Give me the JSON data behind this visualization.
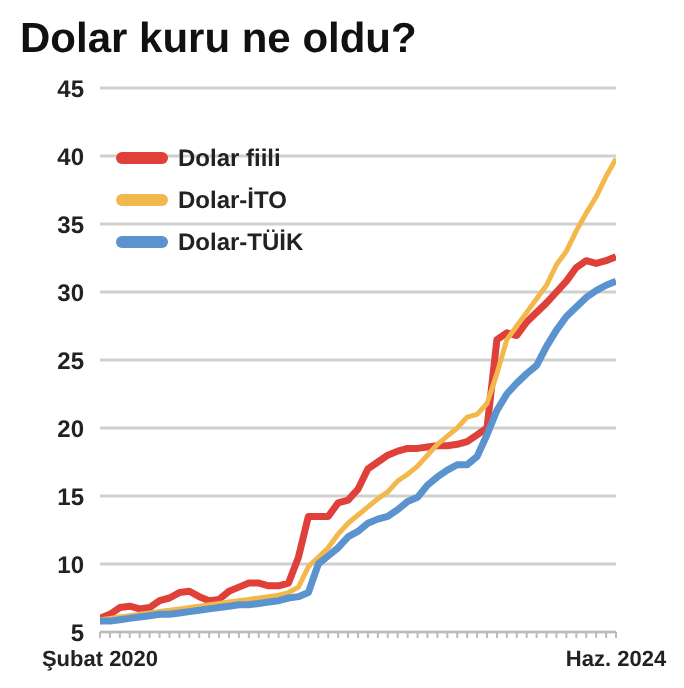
{
  "chart_data": {
    "type": "line",
    "title": "Dolar kuru ne oldu?",
    "categories": [
      "Şubat 2020",
      null,
      null,
      null,
      null,
      null,
      null,
      null,
      null,
      null,
      null,
      null,
      null,
      null,
      null,
      null,
      null,
      null,
      null,
      null,
      null,
      null,
      null,
      null,
      null,
      null,
      null,
      null,
      null,
      null,
      null,
      null,
      null,
      null,
      null,
      null,
      null,
      null,
      null,
      null,
      null,
      null,
      null,
      null,
      null,
      null,
      null,
      null,
      null,
      null,
      null,
      null,
      "Haz. 2024"
    ],
    "series": [
      {
        "name": "Dolar fiili",
        "color": "#e0403a",
        "values": [
          6.0,
          6.3,
          6.8,
          6.9,
          6.7,
          6.8,
          7.3,
          7.5,
          7.9,
          8.0,
          7.6,
          7.3,
          7.4,
          8.0,
          8.3,
          8.6,
          8.6,
          8.4,
          8.4,
          8.6,
          10.5,
          13.5,
          13.5,
          13.5,
          14.5,
          14.7,
          15.5,
          17.0,
          17.5,
          18.0,
          18.3,
          18.5,
          18.5,
          18.6,
          18.7,
          18.7,
          18.8,
          19.0,
          19.5,
          20.0,
          26.5,
          27.0,
          26.8,
          27.8,
          28.5,
          29.2,
          30.0,
          30.8,
          31.8,
          32.3,
          32.1,
          32.3,
          32.6
        ]
      },
      {
        "name": "Dolar-İTO",
        "color": "#f2b84b",
        "values": [
          5.9,
          6.0,
          6.1,
          6.2,
          6.3,
          6.4,
          6.5,
          6.6,
          6.7,
          6.8,
          6.9,
          7.0,
          7.1,
          7.2,
          7.3,
          7.4,
          7.5,
          7.6,
          7.7,
          7.9,
          8.3,
          9.8,
          10.5,
          11.2,
          12.2,
          13.0,
          13.6,
          14.2,
          14.8,
          15.3,
          16.1,
          16.6,
          17.2,
          18.0,
          18.8,
          19.4,
          20.0,
          20.8,
          21.0,
          21.8,
          24.0,
          26.5,
          27.5,
          28.5,
          29.5,
          30.5,
          32.0,
          33.0,
          34.5,
          35.8,
          37.0,
          38.5,
          39.8
        ]
      },
      {
        "name": "Dolar-TÜİK",
        "color": "#5b93cf",
        "values": [
          5.8,
          5.8,
          5.9,
          6.0,
          6.1,
          6.2,
          6.3,
          6.3,
          6.4,
          6.5,
          6.6,
          6.7,
          6.8,
          6.9,
          7.0,
          7.0,
          7.1,
          7.2,
          7.3,
          7.5,
          7.6,
          7.9,
          10.0,
          10.6,
          11.2,
          12.0,
          12.4,
          13.0,
          13.3,
          13.5,
          14.0,
          14.6,
          14.9,
          15.8,
          16.4,
          16.9,
          17.3,
          17.3,
          17.9,
          19.5,
          21.3,
          22.5,
          23.3,
          24.0,
          24.6,
          26.0,
          27.2,
          28.2,
          28.9,
          29.6,
          30.1,
          30.5,
          30.8
        ]
      }
    ],
    "ylim": [
      5,
      45
    ],
    "yticks": [
      5,
      10,
      15,
      20,
      25,
      30,
      35,
      40,
      45
    ],
    "grid": "y",
    "legend": "top left",
    "marker": "none",
    "line_style": "solid"
  }
}
